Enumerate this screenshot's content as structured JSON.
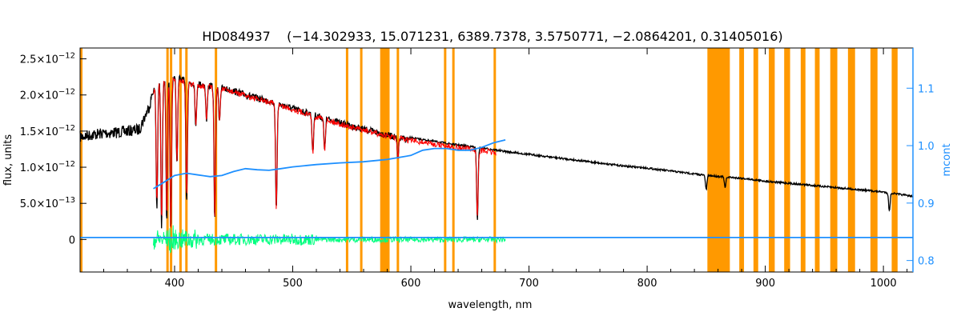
{
  "chart_data": {
    "type": "line",
    "title": "HD084937    (−14.302933, 15.071231, 6389.7378, 3.5750771, −2.0864201, 0.31405016)",
    "xlabel": "wavelength, nm",
    "ylabel": "flux, units",
    "y2label": "mcont",
    "xlim": [
      320,
      1025
    ],
    "ylim": [
      -4.5e-13,
      2.65e-12
    ],
    "y2lim": [
      0.78,
      1.17
    ],
    "grid": false,
    "x_ticks": [
      400,
      500,
      600,
      700,
      800,
      900,
      1000
    ],
    "x_tick_labels": [
      "400",
      "500",
      "600",
      "700",
      "800",
      "900",
      "1000"
    ],
    "y_ticks": [
      0,
      5e-13,
      1e-12,
      1.5e-12,
      2e-12,
      2.5e-12
    ],
    "y_tick_labels": [
      {
        "mant": "0",
        "exp": ""
      },
      {
        "mant": "5.0×10",
        "exp": "−13"
      },
      {
        "mant": "1.0×10",
        "exp": "−12"
      },
      {
        "mant": "1.5×10",
        "exp": "−12"
      },
      {
        "mant": "2.0×10",
        "exp": "−12"
      },
      {
        "mant": "2.5×10",
        "exp": "−12"
      }
    ],
    "y2_ticks": [
      0.8,
      0.9,
      1.0,
      1.1
    ],
    "y2_tick_labels": [
      "0.8",
      "0.9",
      "1.0",
      "1.1"
    ],
    "colors": {
      "observed": "#000000",
      "model": "#ff0000",
      "residual": "#00ff7f",
      "mcont": "#1e90ff",
      "mask": "#ff9900",
      "axis2": "#1e90ff"
    },
    "masked_regions_nm": [
      [
        320,
        321
      ],
      [
        393,
        394
      ],
      [
        396,
        397
      ],
      [
        404,
        405
      ],
      [
        409,
        410
      ],
      [
        434,
        435
      ],
      [
        545,
        546
      ],
      [
        557,
        558
      ],
      [
        574,
        582
      ],
      [
        588,
        589
      ],
      [
        628,
        629
      ],
      [
        635,
        636
      ],
      [
        670,
        671
      ],
      [
        851,
        870
      ],
      [
        878,
        882
      ],
      [
        890,
        894
      ],
      [
        903,
        908
      ],
      [
        916,
        921
      ],
      [
        930,
        934
      ],
      [
        942,
        946
      ],
      [
        955,
        961
      ],
      [
        970,
        976
      ],
      [
        989,
        995
      ],
      [
        1007,
        1012
      ]
    ],
    "series": [
      {
        "role": "observed",
        "x": [
          320,
          330,
          340,
          350,
          360,
          370,
          378,
          382,
          386,
          390,
          395,
          400,
          405,
          410,
          420,
          430,
          440,
          450,
          460,
          470,
          480,
          490,
          500,
          510,
          520,
          530,
          540,
          550,
          560,
          570,
          580,
          590,
          600,
          620,
          640,
          660,
          680,
          700,
          720,
          740,
          760,
          780,
          800,
          820,
          850,
          880,
          900,
          920,
          940,
          960,
          980,
          1000,
          1025
        ],
        "y": [
          1.5e-12,
          1.53e-12,
          1.55e-12,
          1.56e-12,
          1.58e-12,
          1.6e-12,
          1.9e-12,
          2.1e-12,
          2.2e-12,
          2.25e-12,
          2.28e-12,
          2.3e-12,
          2.27e-12,
          2.22e-12,
          2.2e-12,
          2.17e-12,
          2.14e-12,
          2.1e-12,
          2.05e-12,
          2e-12,
          1.96e-12,
          1.91e-12,
          1.86e-12,
          1.81e-12,
          1.76e-12,
          1.71e-12,
          1.66e-12,
          1.61e-12,
          1.57e-12,
          1.53e-12,
          1.49e-12,
          1.45e-12,
          1.42e-12,
          1.37e-12,
          1.32e-12,
          1.28e-12,
          1.23e-12,
          1.19e-12,
          1.15e-12,
          1.11e-12,
          1.07e-12,
          1.03e-12,
          1e-12,
          9.6e-13,
          9e-13,
          8.6e-13,
          8.2e-13,
          7.9e-13,
          7.6e-13,
          7.3e-13,
          7e-13,
          6.7e-13,
          6.1e-13
        ]
      },
      {
        "role": "model",
        "x": [
          382,
          386,
          390,
          395,
          400,
          405,
          410,
          420,
          430,
          440,
          450,
          460,
          470,
          480,
          490,
          500,
          510,
          520,
          530,
          540,
          550,
          560,
          570,
          580,
          590,
          600,
          620,
          640,
          660,
          672
        ],
        "y": [
          2.08e-12,
          2.18e-12,
          2.23e-12,
          2.26e-12,
          2.28e-12,
          2.25e-12,
          2.2e-12,
          2.18e-12,
          2.15e-12,
          2.12e-12,
          2.08e-12,
          2.03e-12,
          1.98e-12,
          1.94e-12,
          1.89e-12,
          1.84e-12,
          1.79e-12,
          1.74e-12,
          1.69e-12,
          1.64e-12,
          1.59e-12,
          1.55e-12,
          1.51e-12,
          1.47e-12,
          1.44e-12,
          1.41e-12,
          1.36e-12,
          1.31e-12,
          1.27e-12,
          1.24e-12
        ]
      },
      {
        "role": "mcont",
        "x": [
          382,
          390,
          400,
          410,
          420,
          430,
          440,
          450,
          460,
          470,
          480,
          490,
          500,
          520,
          540,
          560,
          580,
          600,
          610,
          620,
          630,
          640,
          650,
          660,
          670,
          680
        ],
        "y": [
          0.925,
          0.935,
          0.948,
          0.952,
          0.949,
          0.946,
          0.948,
          0.955,
          0.96,
          0.958,
          0.957,
          0.96,
          0.963,
          0.967,
          0.97,
          0.972,
          0.976,
          0.983,
          0.992,
          0.995,
          0.995,
          0.992,
          0.992,
          0.997,
          1.005,
          1.01
        ]
      },
      {
        "role": "mcont_flat",
        "x": [
          320,
          380,
          680,
          1025
        ],
        "y": [
          0.84,
          0.84,
          0.84,
          0.84
        ]
      }
    ],
    "absorption_lines_nm": [
      {
        "x": 385,
        "depth": 1.7e-12
      },
      {
        "x": 389,
        "depth": 2.05e-12
      },
      {
        "x": 393.4,
        "depth": 2e-12
      },
      {
        "x": 396.8,
        "depth": 2.15e-12
      },
      {
        "x": 402,
        "depth": 1.2e-12
      },
      {
        "x": 410.2,
        "depth": 1.65e-12
      },
      {
        "x": 418,
        "depth": 6e-13
      },
      {
        "x": 427,
        "depth": 5e-13
      },
      {
        "x": 434,
        "depth": 1.85e-12
      },
      {
        "x": 438,
        "depth": 4.5e-13
      },
      {
        "x": 486.1,
        "depth": 1.5e-12
      },
      {
        "x": 517,
        "depth": 5.5e-13
      },
      {
        "x": 527,
        "depth": 4.5e-13
      },
      {
        "x": 589,
        "depth": 3e-13
      },
      {
        "x": 656.3,
        "depth": 1e-12
      },
      {
        "x": 850,
        "depth": 2e-13
      },
      {
        "x": 866,
        "depth": 1.5e-13
      },
      {
        "x": 1005,
        "depth": 2.5e-13
      }
    ]
  }
}
